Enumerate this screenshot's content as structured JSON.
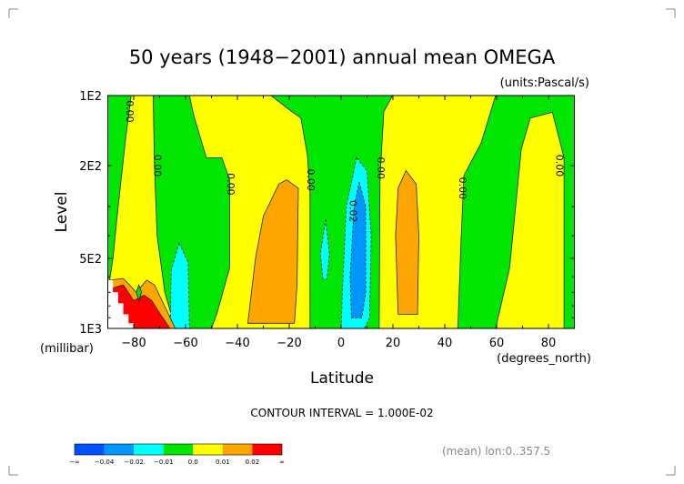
{
  "chart_data": {
    "type": "contour",
    "title": "50 years (1948−2001) annual mean OMEGA",
    "units": "(units:Pascal/s)",
    "xlabel": "Latitude",
    "xunits": "(degrees_north)",
    "ylabel": "Level",
    "yunits": "(millibar)",
    "xlim": [
      -90,
      90
    ],
    "ylim": [
      1000,
      100
    ],
    "yscale": "log",
    "xticks": [
      -80,
      -60,
      -40,
      -20,
      0,
      20,
      40,
      60,
      80
    ],
    "xtick_labels": [
      "−80",
      "−60",
      "−40",
      "−20",
      "0",
      "20",
      "40",
      "60",
      "80"
    ],
    "yticks": [
      100,
      200,
      500,
      1000
    ],
    "ytick_labels": [
      "1E2",
      "2E2",
      "5E2",
      "1E3"
    ],
    "contour_interval_text": "CONTOUR INTERVAL = 1.000E-02",
    "footer_note": "(mean) lon:0..357.5",
    "background_color": "#00e600",
    "regions": [
      {
        "name": "yellow-band-south-polar",
        "color": "#ffff00",
        "points": [
          [
            -81,
            100
          ],
          [
            -72.5,
            100
          ],
          [
            -72,
            200
          ],
          [
            -71,
            400
          ],
          [
            -68,
            700
          ],
          [
            -64,
            1000
          ],
          [
            -90,
            1000
          ],
          [
            -90,
            700
          ],
          [
            -88,
            500
          ],
          [
            -86,
            300
          ],
          [
            -83,
            150
          ]
        ]
      },
      {
        "name": "yellow-band-south-subtropics",
        "color": "#ffff00",
        "points": [
          [
            -58.5,
            100
          ],
          [
            -27,
            100
          ],
          [
            -20,
            115
          ],
          [
            -15.5,
            125
          ],
          [
            -13,
            180
          ],
          [
            -12,
            260
          ],
          [
            -12,
            1000
          ],
          [
            -50,
            1000
          ],
          [
            -48,
            870
          ],
          [
            -43,
            550
          ],
          [
            -43,
            230
          ],
          [
            -46,
            185
          ],
          [
            -52,
            185
          ],
          [
            -57,
            120
          ]
        ]
      },
      {
        "name": "orange-south-subtropics",
        "color": "#ffa500",
        "points": [
          [
            -24,
            240
          ],
          [
            -21,
            230
          ],
          [
            -16.5,
            250
          ],
          [
            -17,
            650
          ],
          [
            -18,
            950
          ],
          [
            -36,
            950
          ],
          [
            -33,
            500
          ],
          [
            -30,
            330
          ]
        ]
      },
      {
        "name": "yellow-band-north-subtropics",
        "color": "#ffff00",
        "points": [
          [
            19.9,
            100
          ],
          [
            59.6,
            100
          ],
          [
            54,
            160
          ],
          [
            47.4,
            220
          ],
          [
            46.3,
            410
          ],
          [
            45,
            1000
          ],
          [
            14.7,
            1000
          ],
          [
            15,
            225
          ],
          [
            16.5,
            117
          ]
        ]
      },
      {
        "name": "orange-north-subtropics",
        "color": "#ffa500",
        "points": [
          [
            25,
            210
          ],
          [
            29,
            240
          ],
          [
            30,
            400
          ],
          [
            29.5,
            870
          ],
          [
            22,
            870
          ],
          [
            21,
            400
          ],
          [
            22,
            250
          ]
        ]
      },
      {
        "name": "yellow-band-north-polar",
        "color": "#ffff00",
        "points": [
          [
            73,
            125
          ],
          [
            81.5,
            118
          ],
          [
            86,
            185
          ],
          [
            86,
            1000
          ],
          [
            59.6,
            1000
          ],
          [
            65,
            550
          ],
          [
            69.5,
            170
          ]
        ]
      },
      {
        "name": "cyan-south-60",
        "color": "#00ffff",
        "points": [
          [
            -62.5,
            430
          ],
          [
            -59,
            520
          ],
          [
            -58.5,
            1000
          ],
          [
            -66,
            1000
          ],
          [
            -65.5,
            560
          ]
        ]
      },
      {
        "name": "cyan-equator-small",
        "color": "#00ffff",
        "points": [
          [
            -6,
            340
          ],
          [
            -4.5,
            480
          ],
          [
            -5.5,
            615
          ],
          [
            -7,
            615
          ],
          [
            -8,
            480
          ]
        ]
      },
      {
        "name": "cyan-north-itcz",
        "color": "#00ffff",
        "points": [
          [
            6,
            185
          ],
          [
            10,
            210
          ],
          [
            11.6,
            400
          ],
          [
            11,
            900
          ],
          [
            9,
            1000
          ],
          [
            0,
            1000
          ],
          [
            0.5,
            700
          ],
          [
            2,
            300
          ]
        ]
      },
      {
        "name": "blue-north-itcz",
        "color": "#0096ff",
        "points": [
          [
            7,
            235
          ],
          [
            9.5,
            300
          ],
          [
            9.5,
            700
          ],
          [
            8,
            900
          ],
          [
            4,
            900
          ],
          [
            3.5,
            600
          ],
          [
            5,
            300
          ]
        ]
      },
      {
        "name": "orange-south-polar",
        "color": "#ffa500",
        "points": [
          [
            -89,
            620
          ],
          [
            -84,
            610
          ],
          [
            -79,
            700
          ],
          [
            -75,
            620
          ],
          [
            -72,
            650
          ],
          [
            -67,
            850
          ],
          [
            -64,
            1000
          ],
          [
            -90,
            1000
          ]
        ]
      },
      {
        "name": "red-south-polar",
        "color": "#ff0000",
        "points": [
          [
            -88,
            670
          ],
          [
            -84,
            650
          ],
          [
            -80,
            760
          ],
          [
            -76,
            720
          ],
          [
            -73,
            760
          ],
          [
            -70,
            860
          ],
          [
            -66,
            1000
          ],
          [
            -88,
            1000
          ]
        ]
      },
      {
        "name": "green-diamond-south-polar",
        "color": "#00e600",
        "points": [
          [
            -78,
            650
          ],
          [
            -77,
            700
          ],
          [
            -78,
            760
          ],
          [
            -79,
            700
          ]
        ]
      },
      {
        "name": "missing-data-south-polar",
        "color": "#ffffff",
        "points": [
          [
            -90,
            620
          ],
          [
            -88,
            620
          ],
          [
            -88,
            700
          ],
          [
            -86,
            700
          ],
          [
            -86,
            780
          ],
          [
            -84,
            780
          ],
          [
            -84,
            870
          ],
          [
            -82,
            870
          ],
          [
            -82,
            950
          ],
          [
            -80,
            950
          ],
          [
            -80,
            1000
          ],
          [
            -90,
            1000
          ]
        ]
      }
    ],
    "contour_labels": [
      {
        "text": "0.00",
        "lat": -81.7,
        "p": 117
      },
      {
        "text": "0.00",
        "lat": -71,
        "p": 200
      },
      {
        "text": "0.00",
        "lat": -42.8,
        "p": 240
      },
      {
        "text": "0.00",
        "lat": -12,
        "p": 230
      },
      {
        "text": "0.02",
        "lat": 4.3,
        "p": 314
      },
      {
        "text": "0.00",
        "lat": 15,
        "p": 205
      },
      {
        "text": "0.00",
        "lat": 46.7,
        "p": 250
      },
      {
        "text": "0.00",
        "lat": 84,
        "p": 200
      }
    ],
    "colorbar": {
      "colors": [
        "#0050ff",
        "#0096ff",
        "#00ffff",
        "#00e600",
        "#ffff00",
        "#ffa500",
        "#ff0000"
      ],
      "labels": [
        "−∞",
        "−0.04",
        "−0.02",
        "−0.01",
        "0.0",
        "0.01",
        "0.02",
        "∞"
      ]
    }
  }
}
